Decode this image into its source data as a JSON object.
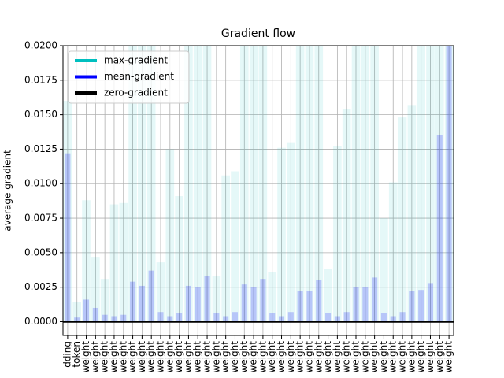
{
  "chart_data": {
    "type": "bar",
    "title": "Gradient flow",
    "y_label": "average gradient",
    "categories": [
      "dding",
      "token",
      "weight",
      "weight",
      "weight",
      "weight",
      "weight",
      "weight",
      "weight",
      "weight",
      "weight",
      "weight",
      "weight",
      "weight",
      "weight",
      "weight",
      "weight",
      "weight",
      "weight",
      "weight",
      "weight",
      "weight",
      "weight",
      "weight",
      "weight",
      "weight",
      "weight",
      "weight",
      "weight",
      "weight",
      "weight",
      "weight",
      "weight",
      "weight",
      "weight",
      "weight",
      "weight",
      "weight",
      "weight",
      "weight",
      "weight",
      "weight"
    ],
    "series": [
      {
        "name": "max-gradient",
        "color": "#00bfbf",
        "values": [
          0.016,
          0.0014,
          0.0088,
          0.0047,
          0.0031,
          0.0085,
          0.0086,
          0.02,
          0.02,
          0.02,
          0.0043,
          0.0125,
          0.0091,
          0.02,
          0.02,
          0.02,
          0.0033,
          0.0106,
          0.0109,
          0.02,
          0.02,
          0.02,
          0.0036,
          0.0126,
          0.013,
          0.02,
          0.02,
          0.02,
          0.0038,
          0.0127,
          0.0154,
          0.02,
          0.02,
          0.02,
          0.0075,
          0.0101,
          0.0148,
          0.0157,
          0.02,
          0.02,
          0.02,
          0.02
        ]
      },
      {
        "name": "mean-gradient",
        "color": "#0000ff",
        "values": [
          0.0122,
          0.0003,
          0.0016,
          0.001,
          0.0005,
          0.0004,
          0.0005,
          0.0029,
          0.0026,
          0.0037,
          0.0007,
          0.0004,
          0.0006,
          0.0026,
          0.0025,
          0.0033,
          0.0006,
          0.0004,
          0.0007,
          0.0027,
          0.0025,
          0.0031,
          0.0006,
          0.0004,
          0.0007,
          0.0022,
          0.0022,
          0.003,
          0.0006,
          0.0004,
          0.0007,
          0.0025,
          0.0025,
          0.0032,
          0.0006,
          0.0004,
          0.0007,
          0.0022,
          0.0023,
          0.0028,
          0.0135,
          0.02
        ]
      }
    ],
    "hline": {
      "name": "zero-gradient",
      "color": "#000000",
      "value": 0
    },
    "ylim": [
      -0.001,
      0.02
    ],
    "yticks": [
      {
        "value": 0,
        "label": "0.0000"
      },
      {
        "value": 0.0025,
        "label": "0.0025"
      },
      {
        "value": 0.005,
        "label": "0.0050"
      },
      {
        "value": 0.0075,
        "label": "0.0075"
      },
      {
        "value": 0.01,
        "label": "0.0100"
      },
      {
        "value": 0.0125,
        "label": "0.0125"
      },
      {
        "value": 0.015,
        "label": "0.0150"
      },
      {
        "value": 0.0175,
        "label": "0.0175"
      },
      {
        "value": 0.02,
        "label": "0.0200"
      }
    ],
    "grid": true,
    "legend": "upper left"
  }
}
